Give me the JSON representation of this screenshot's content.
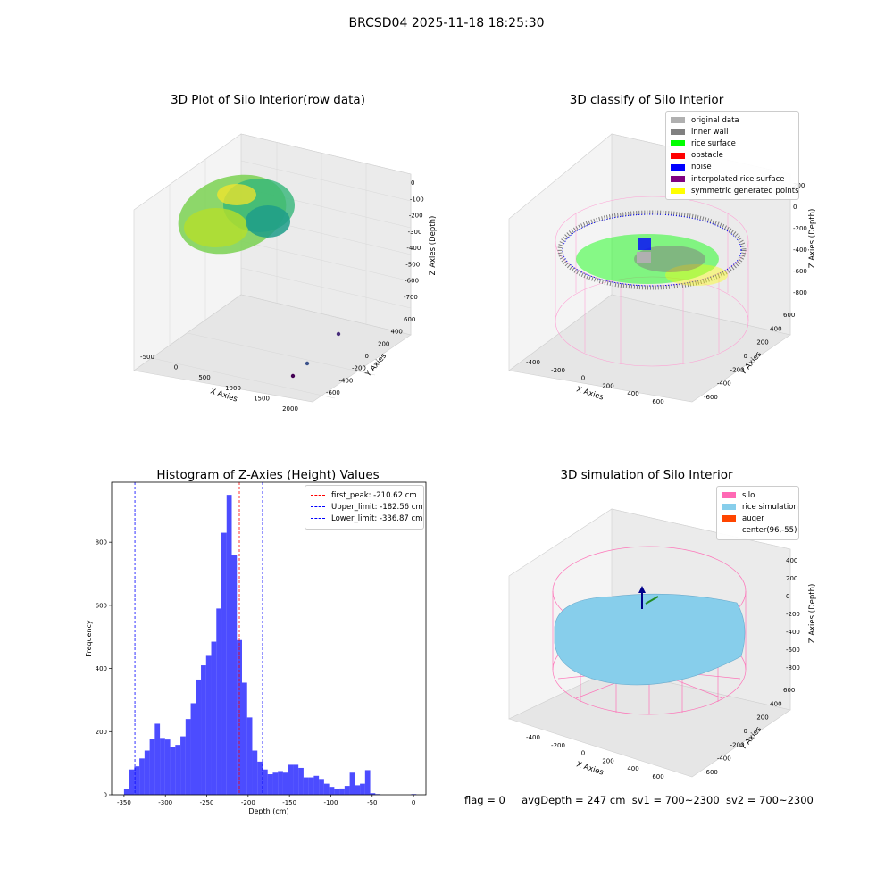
{
  "suptitle": "BRCSD04 2025-11-18 18:25:30",
  "footer": {
    "flag": "flag = 0",
    "avg_depth": "avgDepth = 247 cm",
    "sv1": "sv1 = 700~2300",
    "sv2": "sv2 = 700~2300"
  },
  "colors": {
    "original_data": "#b0b0b0",
    "inner_wall": "#808080",
    "rice_surface": "#00ff00",
    "obstacle": "#ff0000",
    "noise": "#0000ff",
    "interpolated_rice_surface": "#800080",
    "symmetric_generated_points": "#ffff00",
    "silo": "#ff69b4",
    "rice_simulation": "#87ceeb",
    "auger": "#ff4500",
    "histogram_bar": "#0000ff",
    "first_peak_line": "#ff0000",
    "limit_line": "#0000ff"
  },
  "chart_data": [
    {
      "type": "scatter",
      "title": "3D Plot of Silo Interior(row data)",
      "xlabel": "X Axies",
      "ylabel": "Y Axies",
      "zlabel": "Z Axies (Depth)",
      "x_ticks": [
        "-500",
        "0",
        "500",
        "1000",
        "1500",
        "2000"
      ],
      "y_ticks": [
        "-600",
        "-400",
        "-200",
        "0",
        "200",
        "400",
        "600"
      ],
      "z_ticks": [
        "0",
        "-100",
        "-200",
        "-300",
        "-400",
        "-500",
        "-600",
        "-700"
      ],
      "colormap": "viridis"
    },
    {
      "type": "scatter",
      "title": "3D classify of Silo Interior",
      "xlabel": "X Axies",
      "ylabel": "Y Axies",
      "zlabel": "Z Axies (Depth)",
      "x_ticks": [
        "-400",
        "-200",
        "0",
        "200",
        "400",
        "600"
      ],
      "y_ticks": [
        "-600",
        "-400",
        "-200",
        "0",
        "200",
        "400",
        "600"
      ],
      "z_ticks": [
        "200",
        "0",
        "-200",
        "-400",
        "-600",
        "-800"
      ],
      "legend": [
        "original data",
        "inner wall",
        "rice surface",
        "obstacle",
        "noise",
        "interpolated rice surface",
        "symmetric generated points"
      ],
      "legend_position": "top-right"
    },
    {
      "type": "bar",
      "title": "Histogram of Z-Axies (Height) Values",
      "xlabel": "Depth (cm)",
      "ylabel": "Frequency",
      "xlim": [
        -365,
        15
      ],
      "ylim": [
        0,
        990
      ],
      "x_ticks": [
        -350,
        -300,
        -250,
        -200,
        -150,
        -100,
        -50,
        0
      ],
      "y_ticks": [
        0,
        200,
        400,
        600,
        800
      ],
      "bin_width": 6.2,
      "bin_starts": [
        -350.0,
        -343.8,
        -337.6,
        -331.4,
        -325.2,
        -319.0,
        -312.8,
        -306.6,
        -300.4,
        -294.2,
        -288.0,
        -281.8,
        -275.6,
        -269.4,
        -263.2,
        -257.0,
        -250.8,
        -244.6,
        -238.4,
        -232.2,
        -226.0,
        -219.8,
        -213.6,
        -207.4,
        -201.2,
        -195.0,
        -188.8,
        -182.6,
        -176.4,
        -170.2,
        -164.0,
        -157.8,
        -151.6,
        -145.4,
        -139.2,
        -133.0,
        -126.8,
        -120.6,
        -114.4,
        -108.2,
        -102.0,
        -95.8,
        -89.6,
        -83.4,
        -77.2,
        -71.0,
        -64.8,
        -58.6,
        -52.4,
        -46.2,
        -40.0,
        -33.8,
        -27.6,
        -21.4,
        -15.2,
        -9.0,
        -2.8
      ],
      "values": [
        18,
        80,
        90,
        115,
        140,
        178,
        225,
        180,
        175,
        150,
        158,
        185,
        240,
        290,
        365,
        410,
        440,
        485,
        590,
        830,
        950,
        760,
        490,
        355,
        245,
        140,
        105,
        80,
        65,
        70,
        75,
        70,
        95,
        95,
        85,
        55,
        55,
        60,
        50,
        35,
        25,
        18,
        20,
        28,
        70,
        30,
        35,
        78,
        5,
        2,
        0,
        0,
        0,
        0,
        0,
        0,
        2
      ],
      "lines": [
        {
          "label": "first_peak: -210.62 cm",
          "x": -210.62,
          "color": "#ff0000"
        },
        {
          "label": "Upper_limit: -182.56 cm",
          "x": -182.56,
          "color": "#0000ff"
        },
        {
          "label": "Lower_limit: -336.87 cm",
          "x": -336.87,
          "color": "#0000ff"
        }
      ],
      "legend_position": "top-right",
      "grid": false
    },
    {
      "type": "scatter",
      "title": "3D simulation of Silo Interior",
      "xlabel": "X Axies",
      "ylabel": "Y Axies",
      "zlabel": "Z Axies (Depth)",
      "x_ticks": [
        "-400",
        "-200",
        "0",
        "200",
        "400",
        "600"
      ],
      "y_ticks": [
        "-600",
        "-400",
        "-200",
        "0",
        "200",
        "400",
        "600"
      ],
      "z_ticks": [
        "400",
        "200",
        "0",
        "-200",
        "-400",
        "-600",
        "-800"
      ],
      "legend": [
        "silo",
        "rice simulation",
        "auger",
        "center(96,-55)"
      ],
      "legend_position": "top-right"
    }
  ]
}
